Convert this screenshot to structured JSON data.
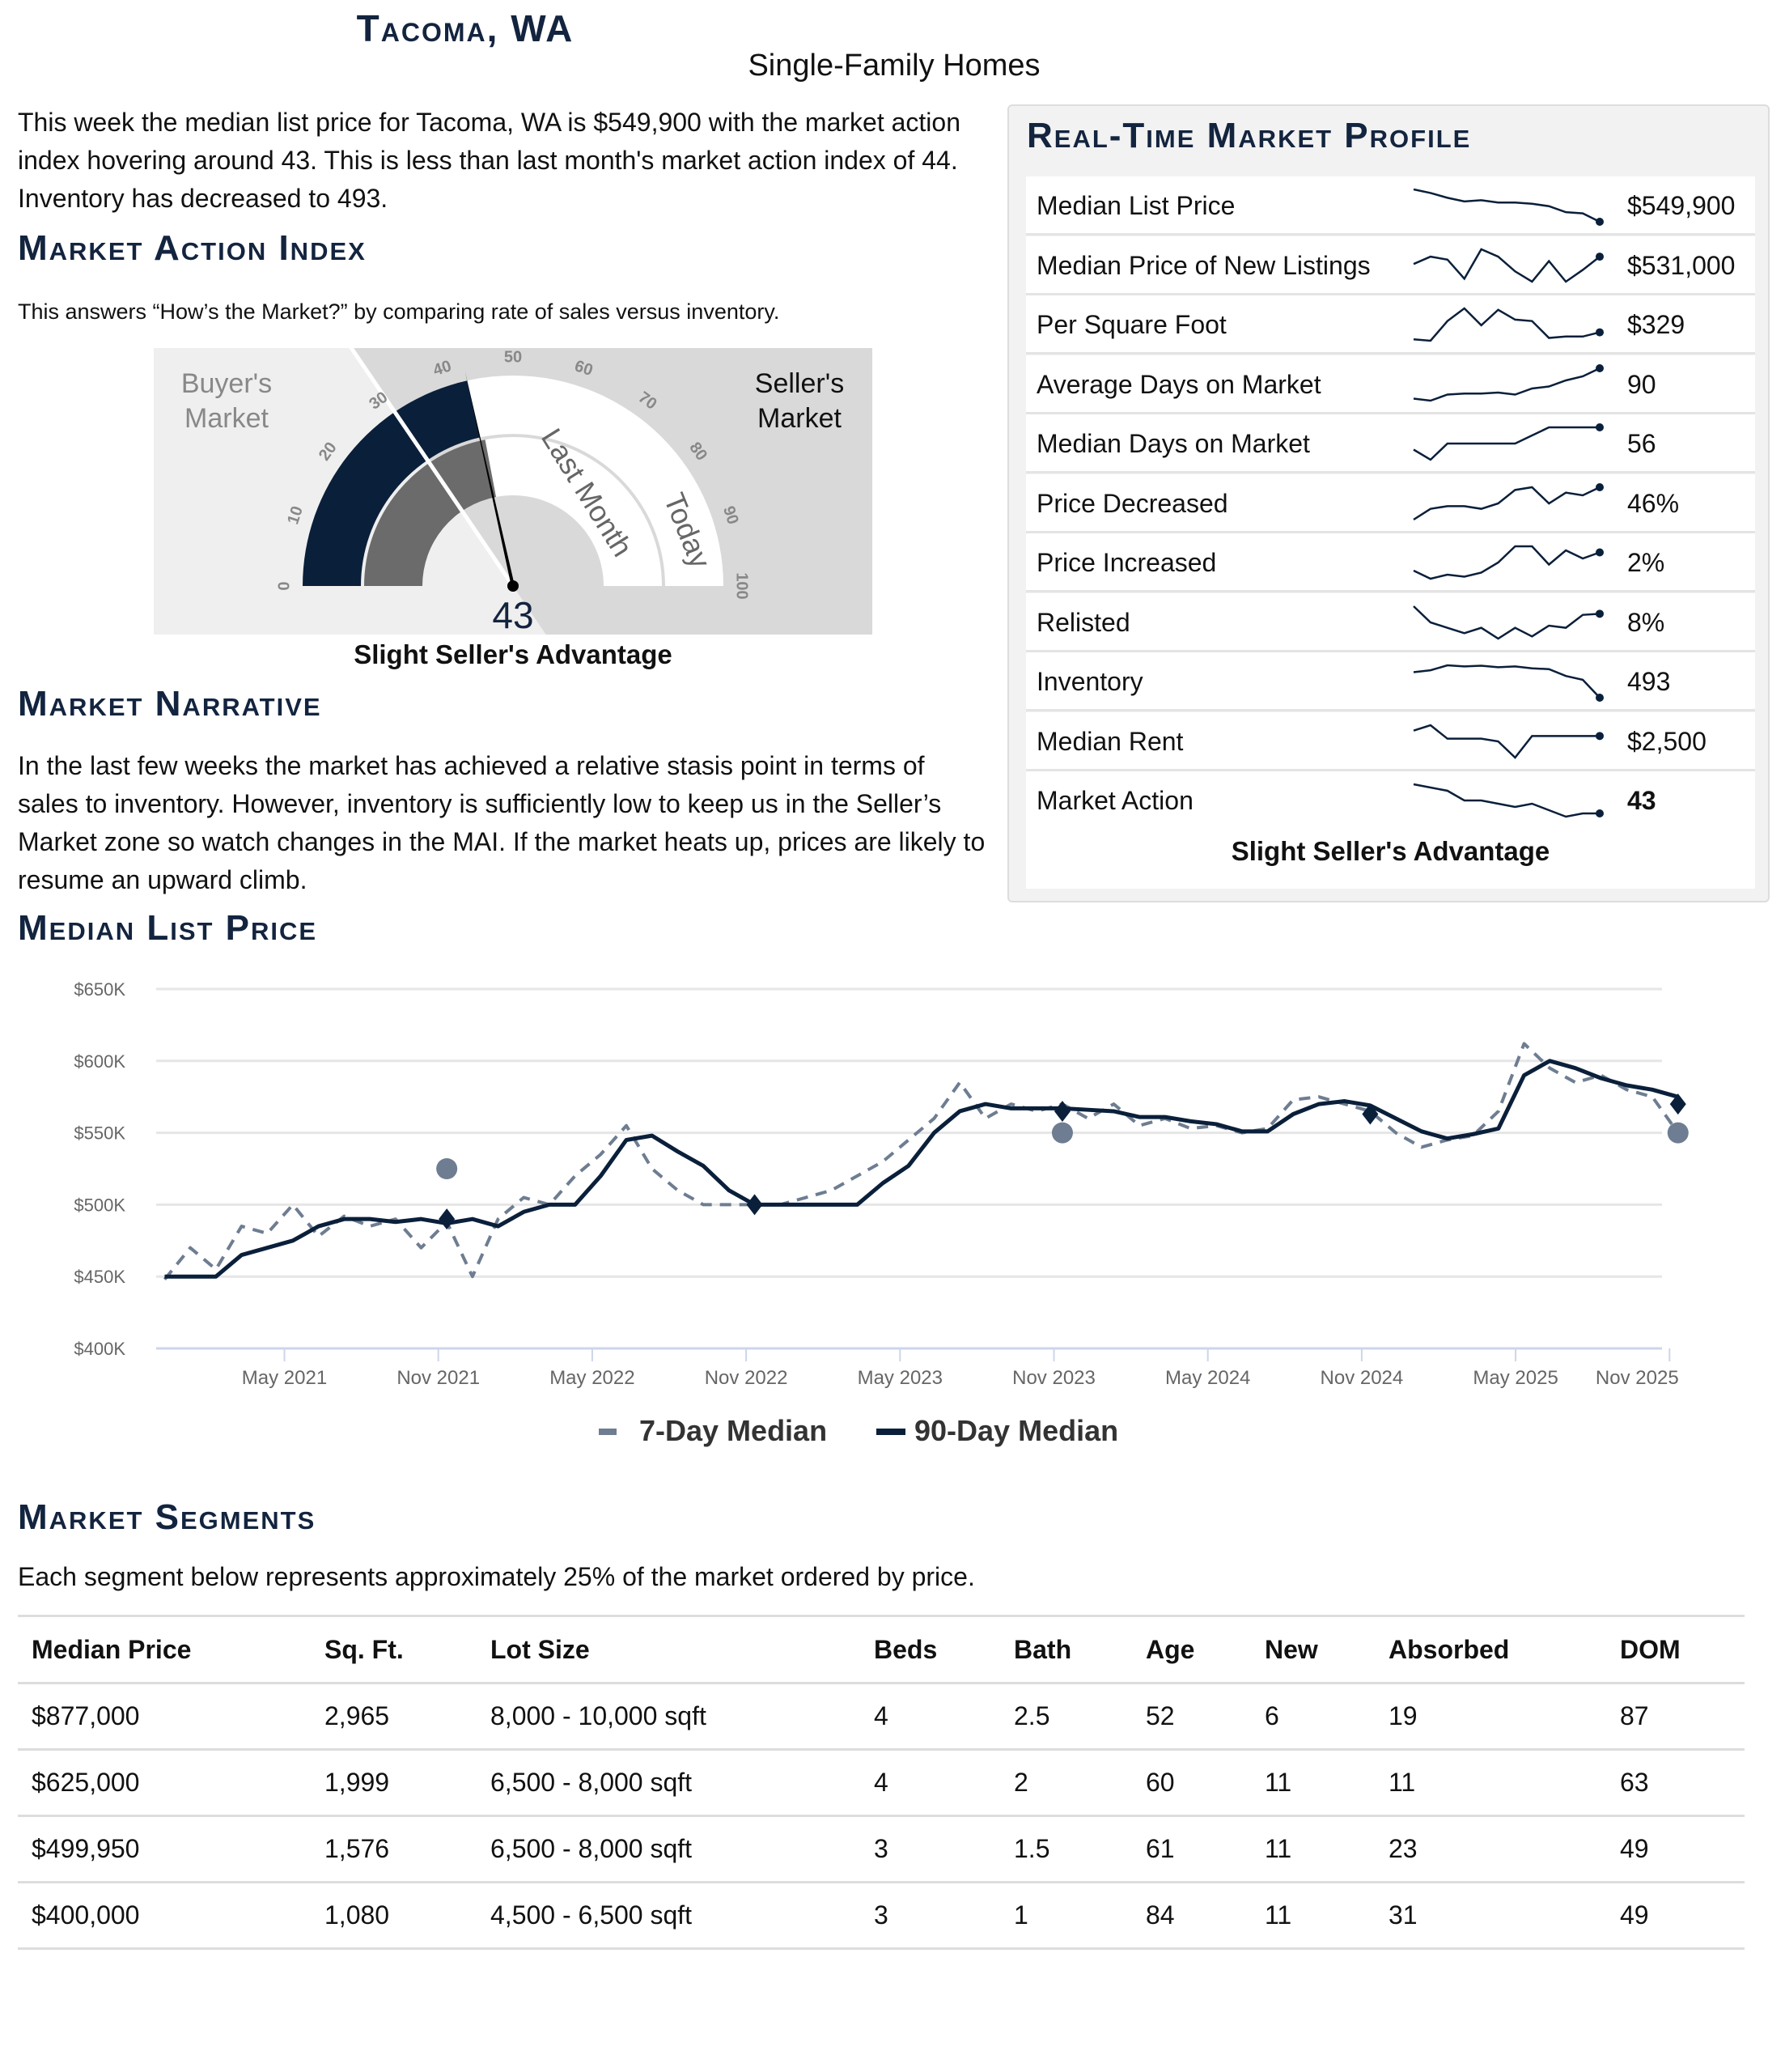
{
  "header": {
    "title": "Tacoma, WA",
    "subtitle": "Single-Family Homes"
  },
  "intro": "This week the median list price for Tacoma, WA is $549,900 with the market action index hovering around 43. This is less than last month's market action index of 44. Inventory has decreased to 493.",
  "mai": {
    "heading": "Market Action Index",
    "description": "This answers “How’s the Market?” by comparing rate of sales versus inventory.",
    "gauge": {
      "today": 43,
      "last_month": 44,
      "min": 0,
      "max": 100,
      "ticks": [
        "0",
        "10",
        "20",
        "30",
        "40",
        "50",
        "60",
        "70",
        "80",
        "90",
        "100"
      ],
      "buyer_label_1": "Buyer's",
      "buyer_label_2": "Market",
      "seller_label_1": "Seller's",
      "seller_label_2": "Market",
      "last_month_label": "Last Month",
      "today_label": "Today",
      "value_label": "43",
      "colors": {
        "today": "#0a1f3a",
        "last_month": "#6b6b6b",
        "empty": "#ffffff",
        "buyer_bg": "#efefef",
        "seller_bg": "#d9d9d9"
      }
    },
    "status": "Slight Seller's Advantage"
  },
  "narrative": {
    "heading": "Market Narrative",
    "text": "In the last few weeks the market has achieved a relative stasis point in terms of sales to inventory. However, inventory is sufficiently low to keep us in the Seller’s Market zone so watch changes in the MAI. If the market heats up, prices are likely to resume an upward climb."
  },
  "profile": {
    "heading": "Real-Time Market Profile",
    "footer": "Slight Seller's Advantage",
    "rows": [
      {
        "label": "Median List Price",
        "value": "$549,900",
        "spark": [
          577,
          574,
          570,
          567,
          568,
          566,
          566,
          565,
          563,
          558,
          557,
          550
        ]
      },
      {
        "label": "Median Price of New Listings",
        "value": "$531,000",
        "spark": [
          540,
          545,
          543,
          530,
          550,
          545,
          535,
          528,
          542,
          528,
          536,
          545
        ]
      },
      {
        "label": "Per Square Foot",
        "value": "$329",
        "spark": [
          320,
          319,
          333,
          342,
          330,
          341,
          334,
          333,
          321,
          322,
          322,
          325
        ]
      },
      {
        "label": "Average Days on Market",
        "value": "90",
        "spark": [
          60,
          58,
          64,
          65,
          65,
          66,
          64,
          70,
          72,
          78,
          82,
          90
        ]
      },
      {
        "label": "Median Days on Market",
        "value": "56",
        "spark": [
          45,
          40,
          48,
          48,
          48,
          48,
          48,
          52,
          56,
          56,
          56,
          56
        ]
      },
      {
        "label": "Price Decreased",
        "value": "46%",
        "spark": [
          34,
          38,
          39,
          39,
          38,
          40,
          45,
          46,
          40,
          44,
          43,
          46
        ]
      },
      {
        "label": "Price Increased",
        "value": "2%",
        "spark": [
          1.2,
          0.8,
          1.0,
          0.9,
          1.1,
          1.6,
          2.4,
          2.4,
          1.5,
          2.2,
          1.8,
          2.1
        ]
      },
      {
        "label": "Relisted",
        "value": "8%",
        "spark": [
          9,
          7.5,
          7,
          6.5,
          7,
          6,
          7,
          6.2,
          7.2,
          7,
          8.2,
          8.3
        ]
      },
      {
        "label": "Inventory",
        "value": "493",
        "spark": [
          560,
          565,
          578,
          575,
          577,
          573,
          575,
          570,
          568,
          550,
          540,
          493
        ]
      },
      {
        "label": "Median Rent",
        "value": "$2,500",
        "spark": [
          2520,
          2540,
          2490,
          2490,
          2490,
          2480,
          2420,
          2500,
          2500,
          2500,
          2500,
          2500
        ]
      },
      {
        "label": "Market Action",
        "value": "43",
        "spark": [
          52,
          51,
          50,
          47,
          47,
          46,
          45,
          46,
          44,
          42,
          43,
          43
        ]
      }
    ]
  },
  "median_list_price": {
    "heading": "Median List Price"
  },
  "chart_data": {
    "type": "line",
    "yticks": [
      "$400K",
      "$450K",
      "$500K",
      "$550K",
      "$600K",
      "$650K"
    ],
    "ylim": [
      400,
      650
    ],
    "yunit": "$K",
    "xticks": [
      "May 2021",
      "Nov 2021",
      "May 2022",
      "Nov 2022",
      "May 2023",
      "Nov 2023",
      "May 2024",
      "Nov 2024",
      "May 2025",
      "Nov 2025"
    ],
    "x": [
      "2020-12",
      "2021-01",
      "2021-02",
      "2021-03",
      "2021-04",
      "2021-05",
      "2021-06",
      "2021-07",
      "2021-08",
      "2021-09",
      "2021-10",
      "2021-11",
      "2021-12",
      "2022-01",
      "2022-02",
      "2022-03",
      "2022-04",
      "2022-05",
      "2022-06",
      "2022-07",
      "2022-08",
      "2022-09",
      "2022-10",
      "2022-11",
      "2022-12",
      "2023-01",
      "2023-02",
      "2023-03",
      "2023-04",
      "2023-05",
      "2023-06",
      "2023-07",
      "2023-08",
      "2023-09",
      "2023-10",
      "2023-11",
      "2023-12",
      "2024-01",
      "2024-02",
      "2024-03",
      "2024-04",
      "2024-05",
      "2024-06",
      "2024-07",
      "2024-08",
      "2024-09",
      "2024-10",
      "2024-11",
      "2024-12",
      "2025-01",
      "2025-02",
      "2025-03",
      "2025-04",
      "2025-05",
      "2025-06",
      "2025-07",
      "2025-08",
      "2025-09",
      "2025-10",
      "2025-11"
    ],
    "series": [
      {
        "name": "7-Day Median",
        "style": "dashed",
        "color": "#6e7d91",
        "values": [
          448,
          470,
          455,
          485,
          480,
          500,
          478,
          492,
          485,
          490,
          470,
          488,
          450,
          490,
          505,
          500,
          520,
          535,
          555,
          525,
          510,
          500,
          500,
          500,
          500,
          505,
          510,
          520,
          530,
          545,
          560,
          585,
          560,
          570,
          565,
          570,
          560,
          570,
          555,
          560,
          553,
          555,
          550,
          553,
          573,
          575,
          570,
          565,
          550,
          540,
          545,
          548,
          565,
          612,
          595,
          585,
          590,
          580,
          575,
          550
        ]
      },
      {
        "name": "90-Day Median",
        "style": "solid",
        "color": "#0a1f3a",
        "values": [
          450,
          450,
          450,
          465,
          470,
          475,
          485,
          490,
          490,
          488,
          490,
          487,
          490,
          485,
          495,
          500,
          500,
          520,
          545,
          548,
          537,
          527,
          510,
          500,
          500,
          500,
          500,
          500,
          515,
          527,
          550,
          565,
          570,
          567,
          567,
          567,
          566,
          565,
          561,
          561,
          558,
          556,
          551,
          551,
          563,
          570,
          572,
          569,
          560,
          551,
          546,
          549,
          553,
          590,
          600,
          595,
          588,
          583,
          580,
          575
        ]
      }
    ],
    "markers": {
      "circles": [
        {
          "x": "2021-11",
          "y": 525
        },
        {
          "x": "2023-11",
          "y": 550
        },
        {
          "x": "2025-11",
          "y": 550
        }
      ],
      "diamonds": [
        {
          "x": "2021-11",
          "y": 490
        },
        {
          "x": "2022-11",
          "y": 500
        },
        {
          "x": "2023-11",
          "y": 565
        },
        {
          "x": "2024-11",
          "y": 563
        },
        {
          "x": "2025-11",
          "y": 570
        }
      ]
    },
    "legend": [
      "7-Day Median",
      "90-Day Median"
    ],
    "legend_position": "bottom",
    "grid": true
  },
  "segments": {
    "heading": "Market Segments",
    "description": "Each segment below represents approximately 25% of the market ordered by price.",
    "columns": [
      "Median Price",
      "Sq. Ft.",
      "Lot Size",
      "Beds",
      "Bath",
      "Age",
      "New",
      "Absorbed",
      "DOM"
    ],
    "rows": [
      [
        "$877,000",
        "2,965",
        "8,000 - 10,000 sqft",
        "4",
        "2.5",
        "52",
        "6",
        "19",
        "87"
      ],
      [
        "$625,000",
        "1,999",
        "6,500 - 8,000 sqft",
        "4",
        "2",
        "60",
        "11",
        "11",
        "63"
      ],
      [
        "$499,950",
        "1,576",
        "6,500 - 8,000 sqft",
        "3",
        "1.5",
        "61",
        "11",
        "23",
        "49"
      ],
      [
        "$400,000",
        "1,080",
        "4,500 - 6,500 sqft",
        "3",
        "1",
        "84",
        "11",
        "31",
        "49"
      ]
    ]
  }
}
